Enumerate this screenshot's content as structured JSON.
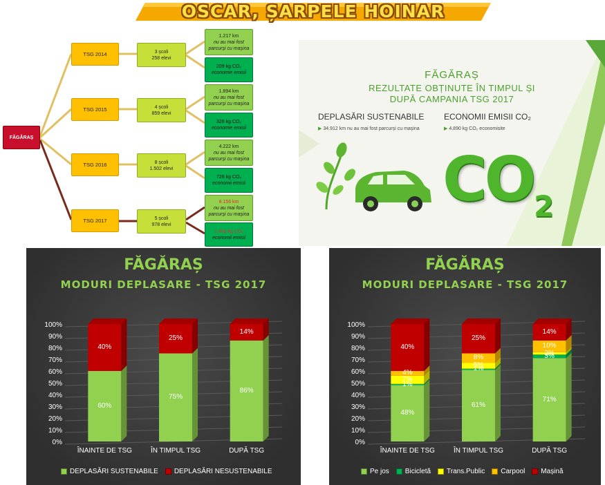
{
  "banner": {
    "title": "OSCAR, ȘARPELE HOINAR"
  },
  "tree": {
    "root": "FĂGĂRAȘ",
    "rows": [
      {
        "tsg": "TSG 2014",
        "schools": "3 școli",
        "students": "258 elevi",
        "km": "1.217 km",
        "km_note": "nu au mai fost parcurși cu mașina",
        "co2": "209 kg CO₂",
        "co2_note": "economie emisii"
      },
      {
        "tsg": "TSG 2015",
        "schools": "4 școli",
        "students": "859 elevi",
        "km": "1.894 km",
        "km_note": "nu au mai fost parcurși cu mașina",
        "co2": "326 kg CO₂",
        "co2_note": "economie emisii"
      },
      {
        "tsg": "TSG 2016",
        "schools": "8 școli",
        "students": "1.502 elevi",
        "km": "4.222 km",
        "km_note": "nu au mai fost parcurși cu mașina",
        "co2": "726 kg CO₂",
        "co2_note": "economii emisii"
      },
      {
        "tsg": "TSG 2017",
        "schools": "5 școli",
        "students": "978 elevi",
        "km": "8.156 km",
        "km_note": "nu au mai fost parcurși cu mașina",
        "co2": "1.403 kg CO₂",
        "co2_note": "economii emisii"
      }
    ]
  },
  "panel": {
    "city": "FĂGĂRAȘ",
    "subtitle1": "REZULTATE OBȚINUTE ÎN TIMPUL ȘI",
    "subtitle2": "DUPĂ CAMPANIA TSG 2017",
    "heading_left": "DEPLASĂRI SUSTENABILE",
    "heading_right": "ECONOMII EMISII CO₂",
    "line_left": "34.912 km nu au mai fost parcurși cu mașina",
    "line_right": "4.890 kg CO₂ economisite",
    "co2_text": "CO",
    "co2_sub": "2"
  },
  "colors": {
    "sustainable": "#92d050",
    "unsustainable": "#c00000",
    "pe_jos": "#92d050",
    "bicicleta": "#00b050",
    "trans_public": "#ffff00",
    "carpool": "#ffc000",
    "masina": "#c00000"
  },
  "chart_data": [
    {
      "type": "bar",
      "stacked": true,
      "title": "FĂGĂRAȘ",
      "subtitle": "MODURI DEPLASARE - TSG 2017",
      "categories": [
        "ÎNAINTE DE TSG",
        "ÎN TIMPUL TSG",
        "DUPĂ TSG"
      ],
      "yticks": [
        "0%",
        "10%",
        "20%",
        "30%",
        "40%",
        "50%",
        "60%",
        "70%",
        "80%",
        "90%",
        "100%"
      ],
      "ylim": [
        0,
        100
      ],
      "series": [
        {
          "name": "DEPLASĂRI SUSTENABILE",
          "color": "#92d050",
          "values": [
            60,
            75,
            86
          ],
          "labels": [
            "60%",
            "75%",
            "86%"
          ]
        },
        {
          "name": "DEPLASĂRI NESUSTENABILE",
          "color": "#c00000",
          "values": [
            40,
            25,
            14
          ],
          "labels": [
            "40%",
            "25%",
            "14%"
          ]
        }
      ],
      "legend": "bottom"
    },
    {
      "type": "bar",
      "stacked": true,
      "title": "FĂGĂRAȘ",
      "subtitle": "MODURI DEPLASARE - TSG 2017",
      "categories": [
        "ÎNAINTE DE TSG",
        "ÎN TIMPUL TSG",
        "DUPĂ TSG"
      ],
      "yticks": [
        "0%",
        "10%",
        "20%",
        "30%",
        "40%",
        "50%",
        "60%",
        "70%",
        "80%",
        "90%",
        "100%"
      ],
      "ylim": [
        0,
        100
      ],
      "series": [
        {
          "name": "Pe jos",
          "color": "#92d050",
          "values": [
            48,
            61,
            71
          ],
          "labels": [
            "48%",
            "61%",
            "71%"
          ]
        },
        {
          "name": "Bicicletă",
          "color": "#00b050",
          "values": [
            1,
            1,
            3
          ],
          "labels": [
            "1%",
            "1%",
            "3%"
          ]
        },
        {
          "name": "Trans.Public",
          "color": "#ffff00",
          "values": [
            7,
            5,
            2
          ],
          "labels": [
            "7%",
            "5%",
            "2%"
          ]
        },
        {
          "name": "Carpool",
          "color": "#ffc000",
          "values": [
            4,
            8,
            10
          ],
          "labels": [
            "4%",
            "8%",
            "10%"
          ]
        },
        {
          "name": "Mașină",
          "color": "#c00000",
          "values": [
            40,
            25,
            14
          ],
          "labels": [
            "40%",
            "25%",
            "14%"
          ]
        }
      ],
      "legend": "bottom"
    }
  ]
}
